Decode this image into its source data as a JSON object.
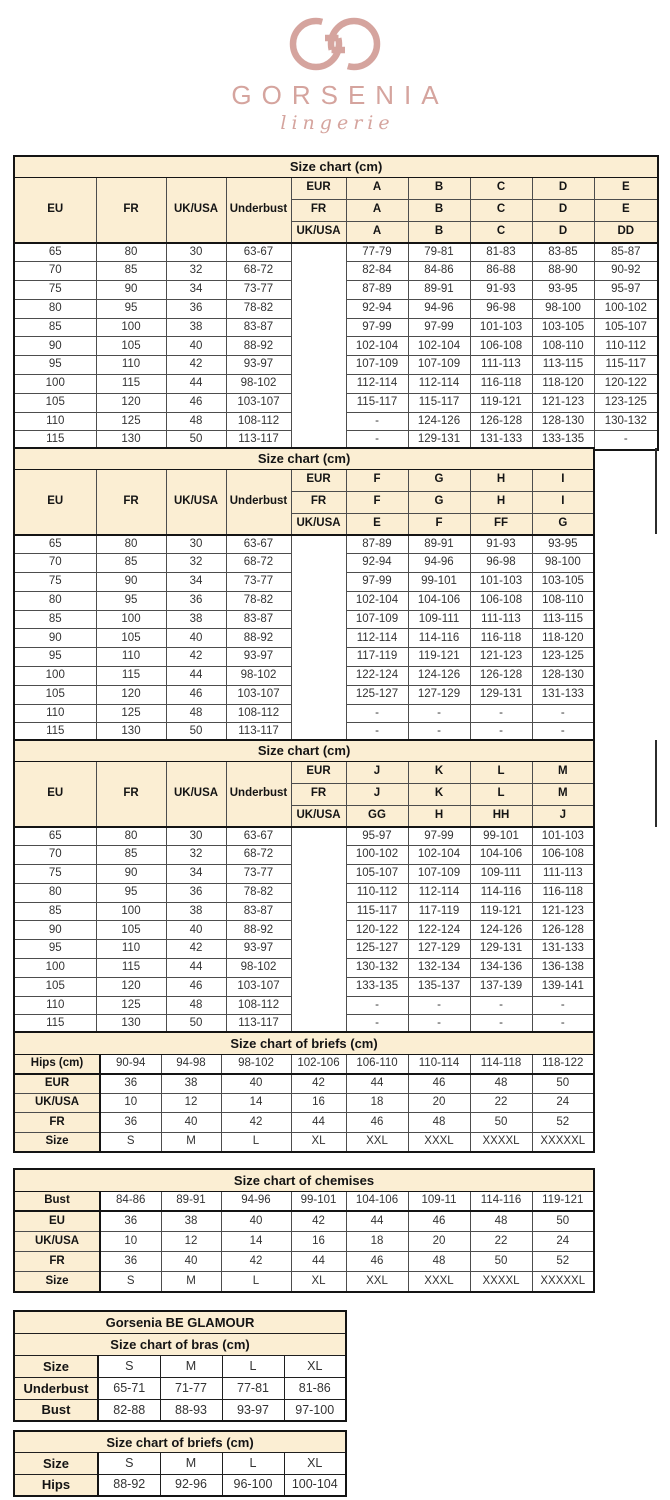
{
  "logo": {
    "brand": "GORSENIA",
    "subtitle": "lingerie",
    "color": "#D5A49E"
  },
  "colors": {
    "header_bg": "#FBEED3",
    "border": "#141414",
    "text": "#333333",
    "logo_pink": "#D5A49E"
  },
  "cup_tables": [
    {
      "title": "Size chart (cm)",
      "left_headers": [
        "EU",
        "FR",
        "UK/USA",
        "Underbust"
      ],
      "conversion_rows": [
        {
          "label": "EUR",
          "cups": [
            "A",
            "B",
            "C",
            "D",
            "E"
          ]
        },
        {
          "label": "FR",
          "cups": [
            "A",
            "B",
            "C",
            "D",
            "E"
          ]
        },
        {
          "label": "UK/USA",
          "cups": [
            "A",
            "B",
            "C",
            "D",
            "DD"
          ]
        }
      ],
      "rows": [
        [
          "65",
          "80",
          "30",
          "63-67",
          "77-79",
          "79-81",
          "81-83",
          "83-85",
          "85-87"
        ],
        [
          "70",
          "85",
          "32",
          "68-72",
          "82-84",
          "84-86",
          "86-88",
          "88-90",
          "90-92"
        ],
        [
          "75",
          "90",
          "34",
          "73-77",
          "87-89",
          "89-91",
          "91-93",
          "93-95",
          "95-97"
        ],
        [
          "80",
          "95",
          "36",
          "78-82",
          "92-94",
          "94-96",
          "96-98",
          "98-100",
          "100-102"
        ],
        [
          "85",
          "100",
          "38",
          "83-87",
          "97-99",
          "97-99",
          "101-103",
          "103-105",
          "105-107"
        ],
        [
          "90",
          "105",
          "40",
          "88-92",
          "102-104",
          "102-104",
          "106-108",
          "108-110",
          "110-112"
        ],
        [
          "95",
          "110",
          "42",
          "93-97",
          "107-109",
          "107-109",
          "111-113",
          "113-115",
          "115-117"
        ],
        [
          "100",
          "115",
          "44",
          "98-102",
          "112-114",
          "112-114",
          "116-118",
          "118-120",
          "120-122"
        ],
        [
          "105",
          "120",
          "46",
          "103-107",
          "115-117",
          "115-117",
          "119-121",
          "121-123",
          "123-125"
        ],
        [
          "110",
          "125",
          "48",
          "108-112",
          "-",
          "124-126",
          "126-128",
          "128-130",
          "130-132"
        ],
        [
          "115",
          "130",
          "50",
          "113-117",
          "-",
          "129-131",
          "131-133",
          "133-135",
          "-"
        ]
      ]
    },
    {
      "title": "Size chart (cm)",
      "left_headers": [
        "EU",
        "FR",
        "UK/USA",
        "Underbust"
      ],
      "conversion_rows": [
        {
          "label": "EUR",
          "cups": [
            "F",
            "G",
            "H",
            "I"
          ]
        },
        {
          "label": "FR",
          "cups": [
            "F",
            "G",
            "H",
            "I"
          ]
        },
        {
          "label": "UK/USA",
          "cups": [
            "E",
            "F",
            "FF",
            "G"
          ]
        }
      ],
      "rows": [
        [
          "65",
          "80",
          "30",
          "63-67",
          "87-89",
          "89-91",
          "91-93",
          "93-95"
        ],
        [
          "70",
          "85",
          "32",
          "68-72",
          "92-94",
          "94-96",
          "96-98",
          "98-100"
        ],
        [
          "75",
          "90",
          "34",
          "73-77",
          "97-99",
          "99-101",
          "101-103",
          "103-105"
        ],
        [
          "80",
          "95",
          "36",
          "78-82",
          "102-104",
          "104-106",
          "106-108",
          "108-110"
        ],
        [
          "85",
          "100",
          "38",
          "83-87",
          "107-109",
          "109-111",
          "111-113",
          "113-115"
        ],
        [
          "90",
          "105",
          "40",
          "88-92",
          "112-114",
          "114-116",
          "116-118",
          "118-120"
        ],
        [
          "95",
          "110",
          "42",
          "93-97",
          "117-119",
          "119-121",
          "121-123",
          "123-125"
        ],
        [
          "100",
          "115",
          "44",
          "98-102",
          "122-124",
          "124-126",
          "126-128",
          "128-130"
        ],
        [
          "105",
          "120",
          "46",
          "103-107",
          "125-127",
          "127-129",
          "129-131",
          "131-133"
        ],
        [
          "110",
          "125",
          "48",
          "108-112",
          "-",
          "-",
          "-",
          "-"
        ],
        [
          "115",
          "130",
          "50",
          "113-117",
          "-",
          "-",
          "-",
          "-"
        ]
      ]
    },
    {
      "title": "Size chart (cm)",
      "left_headers": [
        "EU",
        "FR",
        "UK/USA",
        "Underbust"
      ],
      "conversion_rows": [
        {
          "label": "EUR",
          "cups": [
            "J",
            "K",
            "L",
            "M"
          ]
        },
        {
          "label": "FR",
          "cups": [
            "J",
            "K",
            "L",
            "M"
          ]
        },
        {
          "label": "UK/USA",
          "cups": [
            "GG",
            "H",
            "HH",
            "J"
          ]
        }
      ],
      "rows": [
        [
          "65",
          "80",
          "30",
          "63-67",
          "95-97",
          "97-99",
          "99-101",
          "101-103"
        ],
        [
          "70",
          "85",
          "32",
          "68-72",
          "100-102",
          "102-104",
          "104-106",
          "106-108"
        ],
        [
          "75",
          "90",
          "34",
          "73-77",
          "105-107",
          "107-109",
          "109-111",
          "111-113"
        ],
        [
          "80",
          "95",
          "36",
          "78-82",
          "110-112",
          "112-114",
          "114-116",
          "116-118"
        ],
        [
          "85",
          "100",
          "38",
          "83-87",
          "115-117",
          "117-119",
          "119-121",
          "121-123"
        ],
        [
          "90",
          "105",
          "40",
          "88-92",
          "120-122",
          "122-124",
          "124-126",
          "126-128"
        ],
        [
          "95",
          "110",
          "42",
          "93-97",
          "125-127",
          "127-129",
          "129-131",
          "131-133"
        ],
        [
          "100",
          "115",
          "44",
          "98-102",
          "130-132",
          "132-134",
          "134-136",
          "136-138"
        ],
        [
          "105",
          "120",
          "46",
          "103-107",
          "133-135",
          "135-137",
          "137-139",
          "139-141"
        ],
        [
          "110",
          "125",
          "48",
          "108-112",
          "-",
          "-",
          "-",
          "-"
        ],
        [
          "115",
          "130",
          "50",
          "113-117",
          "-",
          "-",
          "-",
          "-"
        ]
      ]
    }
  ],
  "grid_tables": [
    {
      "name": "briefs-size-chart",
      "titles": [
        "Size chart of briefs (cm)"
      ],
      "rows": [
        [
          "Hips (cm)",
          "90-94",
          "94-98",
          "98-102",
          "102-106",
          "106-110",
          "110-114",
          "114-118",
          "118-122"
        ],
        [
          "EUR",
          "36",
          "38",
          "40",
          "42",
          "44",
          "46",
          "48",
          "50"
        ],
        [
          "UK/USA",
          "10",
          "12",
          "14",
          "16",
          "18",
          "20",
          "22",
          "24"
        ],
        [
          "FR",
          "36",
          "40",
          "42",
          "44",
          "46",
          "48",
          "50",
          "52"
        ],
        [
          "Size",
          "S",
          "M",
          "L",
          "XL",
          "XXL",
          "XXXL",
          "XXXXL",
          "XXXXXL"
        ]
      ]
    },
    {
      "name": "chemises-size-chart",
      "titles": [
        "Size chart of chemises"
      ],
      "rows": [
        [
          "Bust",
          "84-86",
          "89-91",
          "94-96",
          "99-101",
          "104-106",
          "109-11",
          "114-116",
          "119-121"
        ],
        [
          "EU",
          "36",
          "38",
          "40",
          "42",
          "44",
          "46",
          "48",
          "50"
        ],
        [
          "UK/USA",
          "10",
          "12",
          "14",
          "16",
          "18",
          "20",
          "22",
          "24"
        ],
        [
          "FR",
          "36",
          "40",
          "42",
          "44",
          "46",
          "48",
          "50",
          "52"
        ],
        [
          "Size",
          "S",
          "M",
          "L",
          "XL",
          "XXL",
          "XXXL",
          "XXXXL",
          "XXXXXL"
        ]
      ]
    },
    {
      "name": "glamour-bras-size-chart",
      "titles": [
        "Gorsenia BE GLAMOUR",
        "Size chart of bras (cm)"
      ],
      "rows": [
        [
          "Size",
          "S",
          "M",
          "L",
          "XL"
        ],
        [
          "Underbust",
          "65-71",
          "71-77",
          "77-81",
          "81-86"
        ],
        [
          "Bust",
          "82-88",
          "88-93",
          "93-97",
          "97-100"
        ]
      ]
    },
    {
      "name": "glamour-briefs-size-chart",
      "titles": [
        "Size chart of briefs (cm)"
      ],
      "rows": [
        [
          "Size",
          "S",
          "M",
          "L",
          "XL"
        ],
        [
          "Hips",
          "88-92",
          "92-96",
          "96-100",
          "100-104"
        ]
      ]
    }
  ]
}
